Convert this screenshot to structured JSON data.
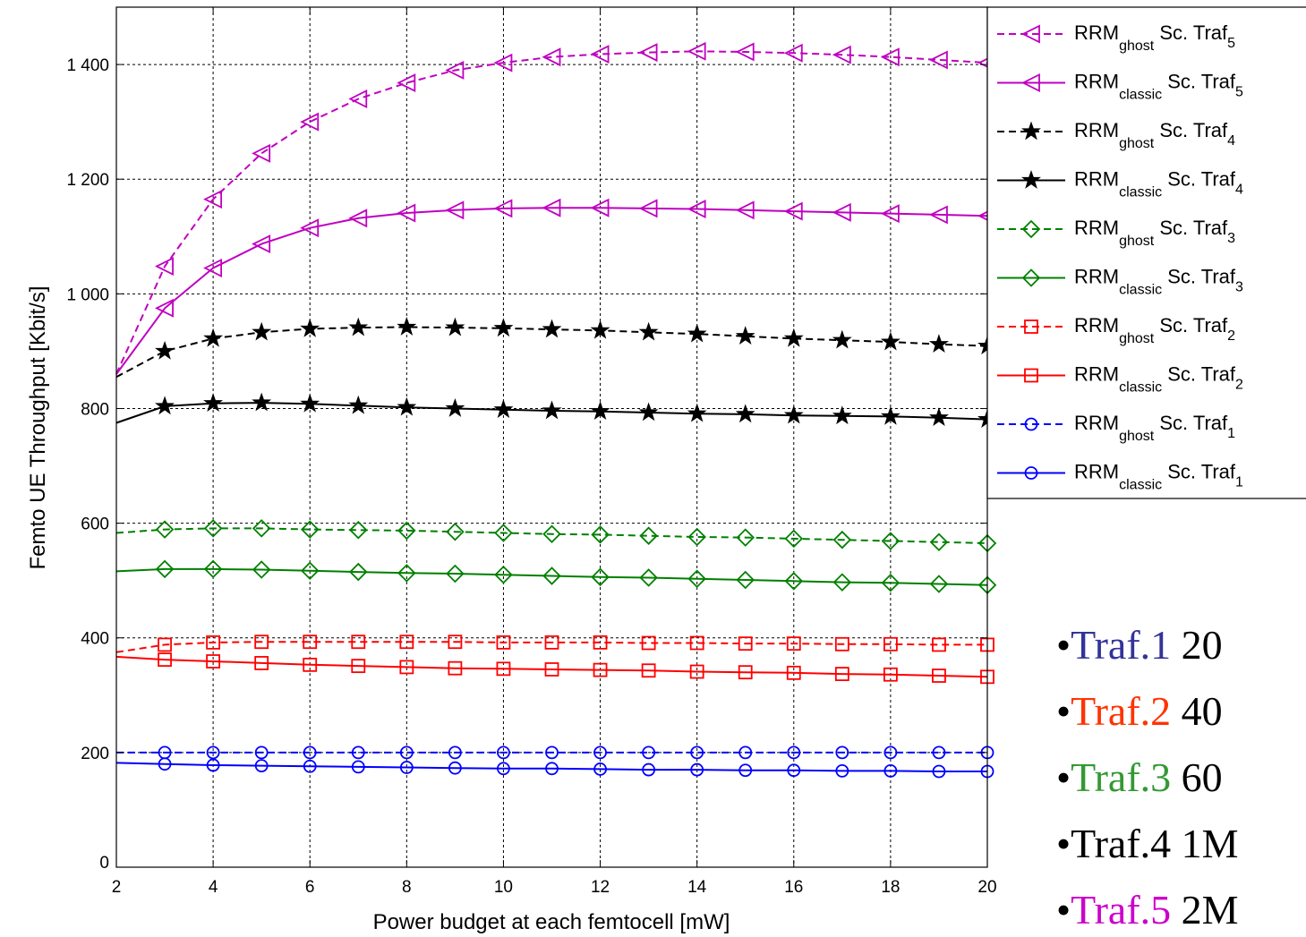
{
  "chart_data": {
    "type": "line",
    "title": "",
    "xlabel": "Power budget at each femtocell [mW]",
    "ylabel": "Femto UE Throughput [Kbit/s]",
    "xlim": [
      2,
      20
    ],
    "ylim": [
      0,
      1500
    ],
    "xticks": [
      2,
      4,
      6,
      8,
      10,
      12,
      14,
      16,
      18,
      20
    ],
    "xtick_labels": [
      "2",
      "4",
      "6",
      "8",
      "10",
      "12",
      "14",
      "16",
      "18",
      "20"
    ],
    "yticks": [
      0,
      200,
      400,
      600,
      800,
      1000,
      1200,
      1400
    ],
    "ytick_labels": [
      "0",
      "200",
      "400",
      "600",
      "800",
      "1 000",
      "1 200",
      "1 400"
    ],
    "grid": true,
    "legend_position": "top-right",
    "x": [
      2,
      3,
      4,
      5,
      6,
      7,
      8,
      9,
      10,
      11,
      12,
      13,
      14,
      15,
      16,
      17,
      18,
      19,
      20
    ],
    "series": [
      {
        "name": "RRM",
        "sub": "ghost",
        "suffix": "Sc. Traf",
        "idx": "5",
        "color": "#c000c0",
        "dash": "dashed",
        "marker": "triangle-left",
        "values": [
          860,
          1048,
          1165,
          1245,
          1300,
          1340,
          1368,
          1390,
          1403,
          1413,
          1418,
          1421,
          1423,
          1422,
          1420,
          1417,
          1413,
          1408,
          1403
        ]
      },
      {
        "name": "RRM",
        "sub": "classic",
        "suffix": "Sc. Traf",
        "idx": "5",
        "color": "#c000c0",
        "dash": "solid",
        "marker": "triangle-left",
        "values": [
          860,
          975,
          1045,
          1087,
          1115,
          1132,
          1141,
          1146,
          1149,
          1150,
          1150,
          1149,
          1148,
          1146,
          1144,
          1142,
          1140,
          1138,
          1136
        ]
      },
      {
        "name": "RRM",
        "sub": "ghost",
        "suffix": "Sc. Traf",
        "idx": "4",
        "color": "#000000",
        "dash": "dashed",
        "marker": "star",
        "values": [
          855,
          900,
          922,
          933,
          939,
          941,
          942,
          941,
          940,
          938,
          936,
          933,
          930,
          926,
          922,
          919,
          916,
          912,
          909
        ]
      },
      {
        "name": "RRM",
        "sub": "classic",
        "suffix": "Sc. Traf",
        "idx": "4",
        "color": "#000000",
        "dash": "solid",
        "marker": "star",
        "values": [
          775,
          804,
          809,
          810,
          808,
          805,
          802,
          800,
          798,
          796,
          795,
          793,
          791,
          790,
          788,
          787,
          786,
          784,
          781
        ]
      },
      {
        "name": "RRM",
        "sub": "ghost",
        "suffix": "Sc. Traf",
        "idx": "3",
        "color": "#008000",
        "dash": "dashed",
        "marker": "diamond",
        "values": [
          583,
          589,
          591,
          591,
          589,
          588,
          587,
          585,
          583,
          581,
          580,
          578,
          576,
          575,
          573,
          571,
          569,
          567,
          565
        ]
      },
      {
        "name": "RRM",
        "sub": "classic",
        "suffix": "Sc. Traf",
        "idx": "3",
        "color": "#008000",
        "dash": "solid",
        "marker": "diamond",
        "values": [
          516,
          520,
          520,
          519,
          517,
          515,
          513,
          512,
          510,
          508,
          506,
          505,
          503,
          501,
          499,
          497,
          496,
          494,
          492
        ]
      },
      {
        "name": "RRM",
        "sub": "ghost",
        "suffix": "Sc. Traf",
        "idx": "2",
        "color": "#ff0000",
        "dash": "dashed",
        "marker": "square",
        "values": [
          375,
          388,
          392,
          393,
          393,
          393,
          393,
          393,
          392,
          392,
          392,
          391,
          391,
          390,
          390,
          389,
          389,
          388,
          388
        ]
      },
      {
        "name": "RRM",
        "sub": "classic",
        "suffix": "Sc. Traf",
        "idx": "2",
        "color": "#ff0000",
        "dash": "solid",
        "marker": "square",
        "values": [
          367,
          362,
          359,
          356,
          353,
          351,
          349,
          347,
          346,
          345,
          344,
          343,
          341,
          340,
          339,
          337,
          336,
          334,
          332
        ]
      },
      {
        "name": "RRM",
        "sub": "ghost",
        "suffix": "Sc. Traf",
        "idx": "1",
        "color": "#0000ff",
        "dash": "dashed",
        "marker": "circle",
        "values": [
          200,
          200,
          200,
          200,
          200,
          200,
          200,
          200,
          200,
          200,
          200,
          200,
          200,
          200,
          200,
          200,
          200,
          200,
          200
        ]
      },
      {
        "name": "RRM",
        "sub": "classic",
        "suffix": "Sc. Traf",
        "idx": "1",
        "color": "#0000ff",
        "dash": "solid",
        "marker": "circle",
        "values": [
          182,
          180,
          178,
          177,
          176,
          175,
          174,
          173,
          172,
          172,
          171,
          170,
          170,
          169,
          169,
          168,
          168,
          167,
          167
        ]
      }
    ]
  },
  "annotations": [
    {
      "label": "Traf.1",
      "rest": "20",
      "color": "#333399"
    },
    {
      "label": "Traf.2",
      "rest": "40",
      "color": "#ff3300"
    },
    {
      "label": "Traf.3",
      "rest": "60",
      "color": "#339933"
    },
    {
      "label": "Traf.4",
      "rest": "1M",
      "color": "#000000"
    },
    {
      "label": "Traf.5",
      "rest": "2M",
      "color": "#cc00cc"
    }
  ]
}
